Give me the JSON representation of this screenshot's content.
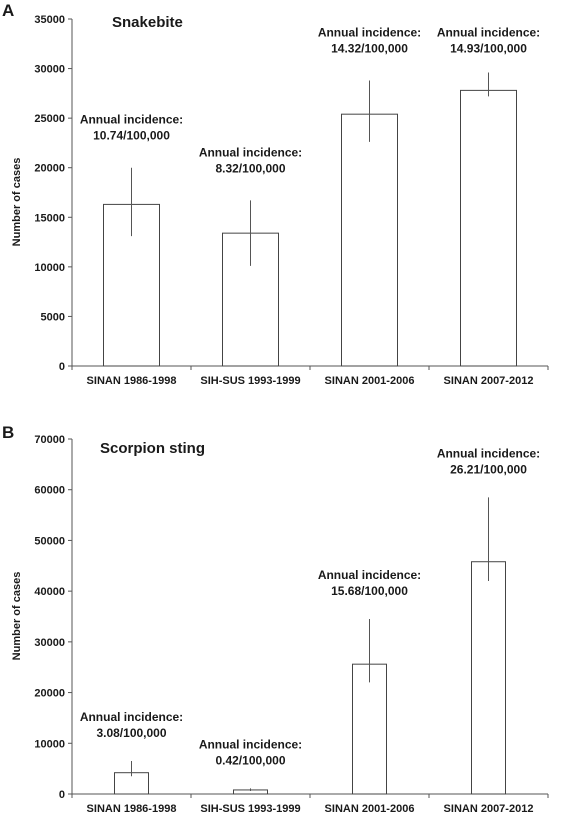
{
  "chart_data": [
    {
      "panel": "A",
      "type": "bar",
      "title": "Snakebite",
      "ylabel": "Number of cases",
      "xlabel": "",
      "ylim": [
        0,
        35000
      ],
      "yticks": [
        0,
        5000,
        10000,
        15000,
        20000,
        25000,
        30000,
        35000
      ],
      "categories": [
        "SINAN 1986-1998",
        "SIH-SUS 1993-1999",
        "SINAN 2001-2006",
        "SINAN 2007-2012"
      ],
      "values": [
        16300,
        13400,
        25400,
        27800
      ],
      "error_low": [
        13100,
        10100,
        22600,
        27200
      ],
      "error_high": [
        20000,
        16700,
        28800,
        29600
      ],
      "annotations": [
        [
          "Annual incidence:",
          "10.74/100,000"
        ],
        [
          "Annual incidence:",
          "8.32/100,000"
        ],
        [
          "Annual incidence:",
          "14.32/100,000"
        ],
        [
          "Annual incidence:",
          "14.93/100,000"
        ]
      ],
      "grid": false,
      "legend": "none"
    },
    {
      "panel": "B",
      "type": "bar",
      "title": "Scorpion sting",
      "ylabel": "Number of cases",
      "xlabel": "",
      "ylim": [
        0,
        70000
      ],
      "yticks": [
        0,
        10000,
        20000,
        30000,
        40000,
        50000,
        60000,
        70000
      ],
      "categories": [
        "SINAN 1986-1998",
        "SIH-SUS 1993-1999",
        "SINAN 2001-2006",
        "SINAN 2007-2012"
      ],
      "values": [
        4200,
        800,
        25600,
        45800
      ],
      "error_low": [
        3500,
        600,
        22000,
        42000
      ],
      "error_high": [
        6500,
        1100,
        34500,
        58500
      ],
      "annotations": [
        [
          "Annual incidence:",
          "3.08/100,000"
        ],
        [
          "Annual incidence:",
          "0.42/100,000"
        ],
        [
          "Annual incidence:",
          "15.68/100,000"
        ],
        [
          "Annual incidence:",
          "26.21/100,000"
        ]
      ],
      "grid": false,
      "legend": "none"
    }
  ]
}
